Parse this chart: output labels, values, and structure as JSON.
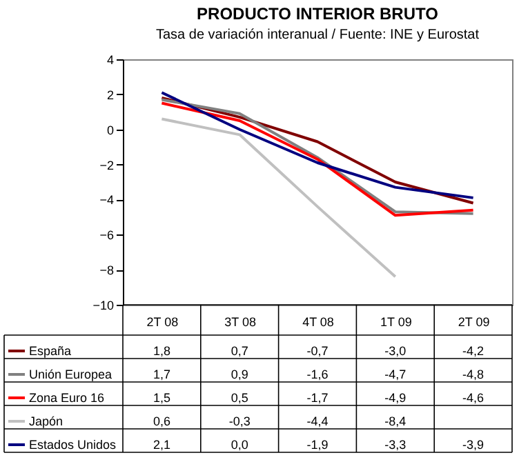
{
  "chart_data": {
    "type": "line",
    "title": "PRODUCTO INTERIOR BRUTO",
    "subtitle": "Tasa de variación interanual / Fuente: INE y Eurostat",
    "categories": [
      "2T 08",
      "3T 08",
      "4T 08",
      "1T 09",
      "2T 09"
    ],
    "series": [
      {
        "name": "España",
        "color": "#800000",
        "values": [
          1.8,
          0.7,
          -0.7,
          -3.0,
          -4.2
        ],
        "value_labels": [
          "1,8",
          "0,7",
          "-0,7",
          "-3,0",
          "-4,2"
        ]
      },
      {
        "name": "Unión Europea",
        "color": "#808080",
        "values": [
          1.7,
          0.9,
          -1.6,
          -4.7,
          -4.8
        ],
        "value_labels": [
          "1,7",
          "0,9",
          "-1,6",
          "-4,7",
          "-4,8"
        ]
      },
      {
        "name": "Zona Euro 16",
        "color": "#ff0000",
        "values": [
          1.5,
          0.5,
          -1.7,
          -4.9,
          -4.6
        ],
        "value_labels": [
          "1,5",
          "0,5",
          "-1,7",
          "-4,9",
          "-4,6"
        ]
      },
      {
        "name": "Japón",
        "color": "#c0c0c0",
        "values": [
          0.6,
          -0.3,
          -4.4,
          -8.4,
          null
        ],
        "value_labels": [
          "0,6",
          "-0,3",
          "-4,4",
          "-8,4",
          null
        ]
      },
      {
        "name": "Estados Unidos",
        "color": "#000080",
        "values": [
          2.1,
          0.0,
          -1.9,
          -3.3,
          -3.9
        ],
        "value_labels": [
          "2,1",
          "0,0",
          "-1,9",
          "-3,3",
          "-3,9"
        ]
      }
    ],
    "ylim": [
      -10,
      4
    ],
    "yticks": [
      -10,
      -8,
      -6,
      -4,
      -2,
      0,
      2,
      4
    ],
    "grid": false,
    "legend": "bottom",
    "marker": "none",
    "line_style": "solid"
  }
}
